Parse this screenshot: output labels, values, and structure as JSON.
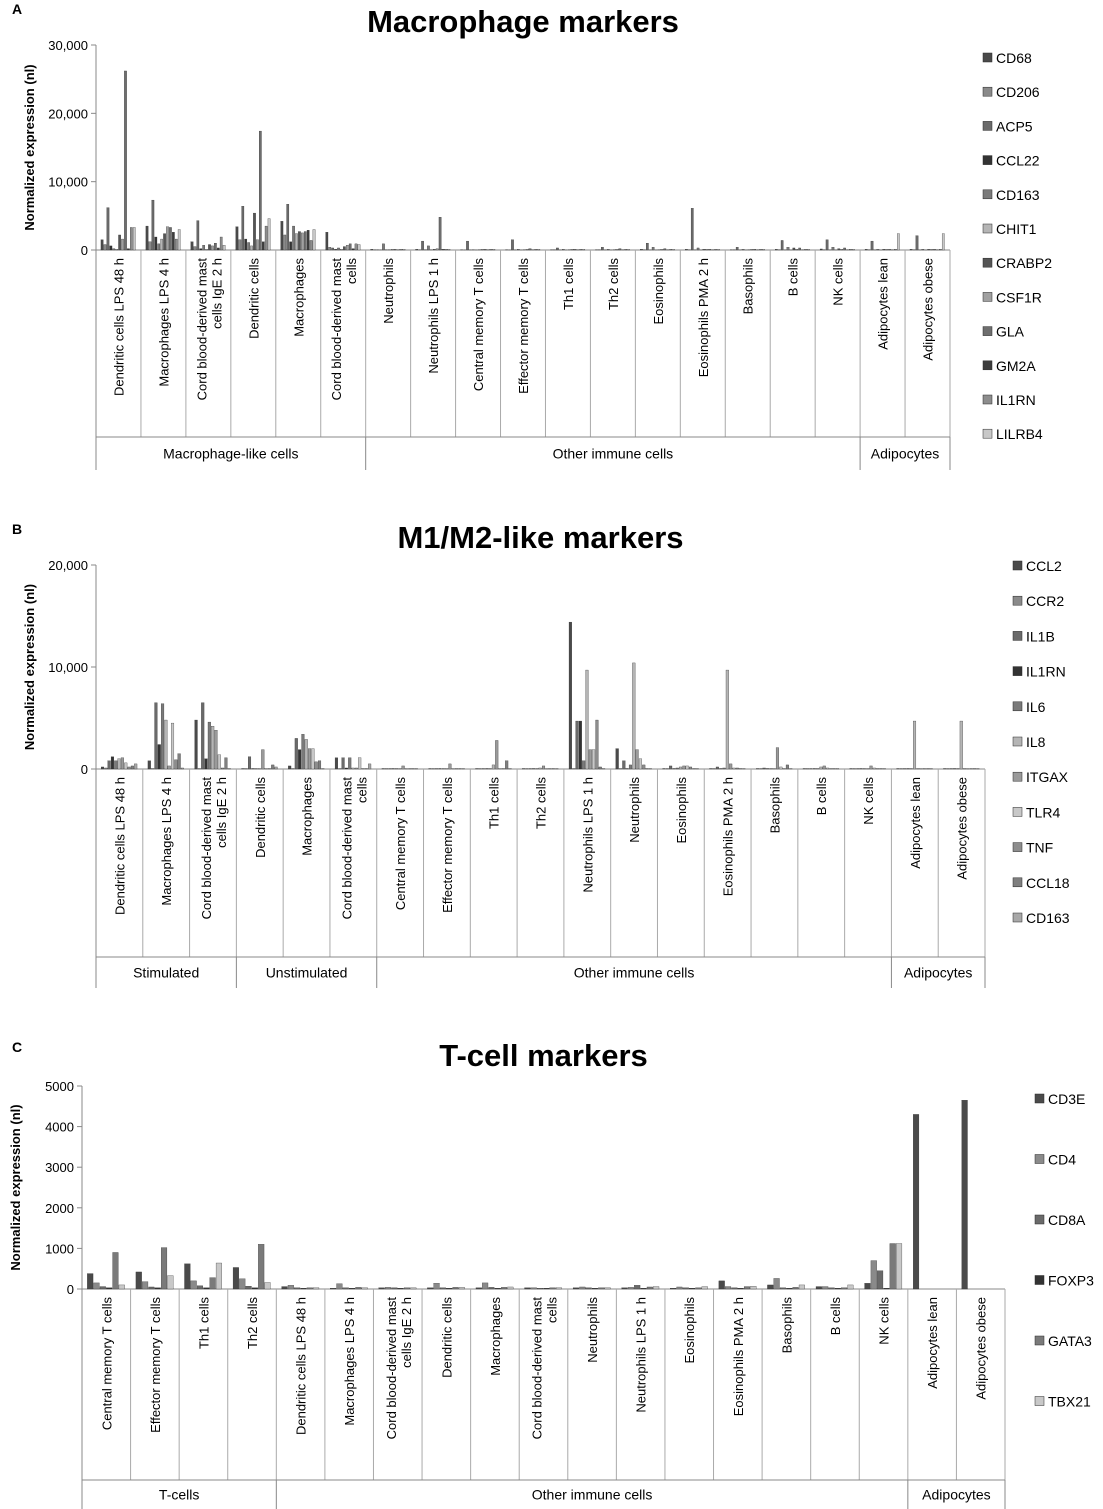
{
  "chart_data": [
    {
      "panel": "A",
      "type": "bar",
      "title": "Macrophage markers",
      "ylabel": "Normalized expression (nl)",
      "ylim": [
        0,
        30000
      ],
      "y_ticks": [
        "0",
        "10,000",
        "20,000",
        "30,000"
      ],
      "categories": [
        "Dendritic cells LPS 48 h",
        "Macrophages LPS 4 h",
        "Cord blood-derived mast cells IgE 2 h",
        "Dendritic cells",
        "Macrophages",
        "Cord blood-derived mast cells",
        "Neutrophils",
        "Neutrophils LPS 1 h",
        "Central memory T cells",
        "Effector memory T cells",
        "Th1 cells",
        "Th2 cells",
        "Eosinophils",
        "Eosinophils PMA 2 h",
        "Basophils",
        "B cells",
        "NK cells",
        "Adipocytes lean",
        "Adipocytes obese"
      ],
      "groups": [
        {
          "label": "Macrophage-like cells",
          "count": 6
        },
        {
          "label": "Other immune cells",
          "count": 11
        },
        {
          "label": "Adipocytes",
          "count": 2
        }
      ],
      "series": [
        {
          "name": "CD68",
          "color": "#4a4a4a",
          "values": [
            1500,
            3500,
            1200,
            3400,
            4200,
            2600,
            100,
            100,
            50,
            50,
            50,
            50,
            100,
            100,
            50,
            100,
            150,
            100,
            100
          ]
        },
        {
          "name": "CD206",
          "color": "#8a8a8a",
          "values": [
            800,
            1200,
            500,
            1500,
            2200,
            400,
            50,
            50,
            20,
            20,
            50,
            50,
            50,
            50,
            50,
            50,
            50,
            50,
            50
          ]
        },
        {
          "name": "ACP5",
          "color": "#6a6a6a",
          "values": [
            6200,
            7300,
            4300,
            6400,
            6700,
            300,
            50,
            1300,
            1300,
            1500,
            300,
            400,
            1000,
            6100,
            400,
            1400,
            1500,
            1300,
            2100
          ]
        },
        {
          "name": "CCL22",
          "color": "#333333",
          "values": [
            600,
            1900,
            200,
            1600,
            1200,
            100,
            20,
            50,
            20,
            20,
            20,
            20,
            20,
            20,
            20,
            20,
            20,
            20,
            20
          ]
        },
        {
          "name": "CD163",
          "color": "#7a7a7a",
          "values": [
            200,
            900,
            700,
            1100,
            3500,
            300,
            900,
            600,
            50,
            100,
            100,
            100,
            400,
            300,
            100,
            400,
            400,
            100,
            100
          ]
        },
        {
          "name": "CHIT1",
          "color": "#b5b5b5",
          "values": [
            100,
            1600,
            100,
            600,
            2400,
            100,
            50,
            50,
            20,
            20,
            20,
            20,
            20,
            20,
            20,
            20,
            20,
            20,
            20
          ]
        },
        {
          "name": "CRABP2",
          "color": "#555555",
          "values": [
            2200,
            2400,
            800,
            5400,
            2700,
            500,
            50,
            100,
            50,
            50,
            50,
            50,
            50,
            100,
            50,
            300,
            200,
            100,
            100
          ]
        },
        {
          "name": "CSF1R",
          "color": "#a0a0a0",
          "values": [
            1600,
            3400,
            600,
            1500,
            2500,
            700,
            100,
            200,
            100,
            100,
            100,
            100,
            100,
            100,
            100,
            100,
            100,
            100,
            100
          ]
        },
        {
          "name": "GLA",
          "color": "#6e6e6e",
          "values": [
            26200,
            3300,
            1000,
            17400,
            2700,
            900,
            100,
            4800,
            100,
            200,
            100,
            200,
            200,
            100,
            100,
            300,
            300,
            100,
            100
          ]
        },
        {
          "name": "GM2A",
          "color": "#3c3c3c",
          "values": [
            200,
            2600,
            300,
            1200,
            2900,
            200,
            50,
            100,
            50,
            50,
            50,
            50,
            50,
            50,
            50,
            50,
            50,
            50,
            50
          ]
        },
        {
          "name": "IL1RN",
          "color": "#8d8d8d",
          "values": [
            3300,
            1600,
            1900,
            3500,
            1400,
            900,
            100,
            100,
            100,
            100,
            100,
            100,
            100,
            100,
            100,
            100,
            100,
            100,
            100
          ]
        },
        {
          "name": "LILRB4",
          "color": "#c8c8c8",
          "values": [
            3300,
            3000,
            700,
            4600,
            3000,
            800,
            100,
            100,
            100,
            100,
            100,
            100,
            100,
            100,
            100,
            100,
            100,
            2400,
            2400
          ]
        }
      ]
    },
    {
      "panel": "B",
      "type": "bar",
      "title": "M1/M2-like markers",
      "ylabel": "Normalized expression (nl)",
      "ylim": [
        0,
        20000
      ],
      "y_ticks": [
        "0",
        "10,000",
        "20,000"
      ],
      "categories": [
        "Dendritic cells LPS 48 h",
        "Macrophages LPS 4 h",
        "Cord blood-derived mast cells IgE 2 h",
        "Dendritic cells",
        "Macrophages",
        "Cord blood-derived mast cells",
        "Central memory T cells",
        "Effector memory T cells",
        "Th1 cells",
        "Th2 cells",
        "Neutrophils LPS 1 h",
        "Neutrophils",
        "Eosinophils",
        "Eosinophils PMA 2 h",
        "Basophils",
        "B cells",
        "NK cells",
        "Adipocytes lean",
        "Adipocytes obese"
      ],
      "groups": [
        {
          "label": "Stimulated",
          "count": 3
        },
        {
          "label": "Unstimulated",
          "count": 3
        },
        {
          "label": "Other immune cells",
          "count": 11
        },
        {
          "label": "Adipocytes",
          "count": 2
        }
      ],
      "series": [
        {
          "name": "CCL2",
          "color": "#4a4a4a",
          "values": [
            200,
            800,
            4800,
            50,
            300,
            1100,
            50,
            50,
            50,
            50,
            14400,
            2000,
            50,
            50,
            50,
            50,
            50,
            50,
            50
          ]
        },
        {
          "name": "CCR2",
          "color": "#8a8a8a",
          "values": [
            100,
            50,
            50,
            50,
            50,
            50,
            50,
            50,
            50,
            50,
            50,
            50,
            50,
            50,
            50,
            50,
            50,
            50,
            50
          ]
        },
        {
          "name": "IL1B",
          "color": "#6a6a6a",
          "values": [
            800,
            6500,
            6500,
            1200,
            3000,
            1100,
            50,
            50,
            50,
            50,
            4700,
            800,
            300,
            200,
            100,
            50,
            50,
            50,
            50
          ]
        },
        {
          "name": "IL1RN",
          "color": "#333333",
          "values": [
            1200,
            2400,
            1000,
            50,
            1900,
            100,
            50,
            50,
            50,
            50,
            4700,
            50,
            50,
            50,
            50,
            50,
            50,
            50,
            50
          ]
        },
        {
          "name": "IL6",
          "color": "#7a7a7a",
          "values": [
            800,
            6400,
            4600,
            50,
            3400,
            1100,
            50,
            50,
            50,
            50,
            800,
            400,
            100,
            100,
            50,
            50,
            50,
            50,
            50
          ]
        },
        {
          "name": "IL8",
          "color": "#b5b5b5",
          "values": [
            1000,
            4800,
            4200,
            50,
            2900,
            100,
            50,
            50,
            400,
            100,
            9700,
            10400,
            200,
            9700,
            50,
            200,
            50,
            4700,
            4700
          ]
        },
        {
          "name": "ITGAX",
          "color": "#9a9a9a",
          "values": [
            1100,
            300,
            3800,
            1900,
            2000,
            100,
            300,
            500,
            2800,
            300,
            1900,
            1900,
            300,
            500,
            2100,
            300,
            300,
            50,
            50
          ]
        },
        {
          "name": "TLR4",
          "color": "#c8c8c8",
          "values": [
            600,
            4500,
            1400,
            50,
            2000,
            1100,
            50,
            50,
            50,
            50,
            1900,
            1000,
            300,
            100,
            200,
            100,
            100,
            50,
            50
          ]
        },
        {
          "name": "TNF",
          "color": "#8d8d8d",
          "values": [
            200,
            900,
            100,
            50,
            700,
            50,
            50,
            50,
            50,
            50,
            4800,
            400,
            200,
            100,
            50,
            50,
            50,
            50,
            50
          ]
        },
        {
          "name": "CCL18",
          "color": "#7f7f7f",
          "values": [
            300,
            1500,
            1100,
            400,
            800,
            50,
            50,
            50,
            800,
            50,
            200,
            50,
            50,
            50,
            400,
            50,
            50,
            50,
            50
          ]
        },
        {
          "name": "CD163",
          "color": "#a8a8a8",
          "values": [
            500,
            100,
            50,
            200,
            50,
            500,
            50,
            50,
            50,
            50,
            50,
            50,
            50,
            50,
            50,
            50,
            50,
            50,
            50
          ]
        }
      ]
    },
    {
      "panel": "C",
      "type": "bar",
      "title": "T-cell markers",
      "ylabel": "Normalized expression (nl)",
      "ylim": [
        0,
        5000
      ],
      "y_ticks": [
        "0",
        "1000",
        "2000",
        "3000",
        "4000",
        "5000"
      ],
      "categories": [
        "Central memory T cells",
        "Effector memory T cells",
        "Th1 cells",
        "Th2 cells",
        "Dendritic cells LPS 48 h",
        "Macrophages LPS 4 h",
        "Cord blood-derived mast cells IgE 2 h",
        "Dendritic cells",
        "Macrophages",
        "Cord blood-derived mast cells",
        "Neutrophils",
        "Neutrophils LPS 1 h",
        "Eosinophils",
        "Eosinophils PMA 2 h",
        "Basophils",
        "B cells",
        "NK cells",
        "Adipocytes lean",
        "Adipocytes obese"
      ],
      "groups": [
        {
          "label": "T-cells",
          "count": 4
        },
        {
          "label": "Other immune cells",
          "count": 13
        },
        {
          "label": "Adipocytes",
          "count": 2
        }
      ],
      "series": [
        {
          "name": "CD3E",
          "color": "#4a4a4a",
          "values": [
            380,
            420,
            620,
            530,
            60,
            20,
            30,
            30,
            30,
            30,
            30,
            30,
            20,
            200,
            100,
            60,
            140,
            4300,
            4650
          ]
        },
        {
          "name": "CD4",
          "color": "#8a8a8a",
          "values": [
            150,
            180,
            200,
            250,
            90,
            130,
            40,
            140,
            150,
            30,
            50,
            40,
            50,
            60,
            260,
            60,
            700,
            0,
            0
          ]
        },
        {
          "name": "CD8A",
          "color": "#6a6a6a",
          "values": [
            60,
            50,
            80,
            70,
            30,
            30,
            30,
            30,
            40,
            20,
            30,
            90,
            30,
            30,
            30,
            30,
            450,
            0,
            0
          ]
        },
        {
          "name": "FOXP3",
          "color": "#333333",
          "values": [
            30,
            30,
            30,
            30,
            20,
            20,
            20,
            20,
            20,
            20,
            20,
            20,
            20,
            20,
            20,
            20,
            20,
            0,
            0
          ]
        },
        {
          "name": "GATA3",
          "color": "#7a7a7a",
          "values": [
            900,
            1020,
            280,
            1100,
            30,
            40,
            30,
            40,
            40,
            30,
            30,
            50,
            30,
            60,
            40,
            30,
            1120,
            0,
            0
          ]
        },
        {
          "name": "TBX21",
          "color": "#c8c8c8",
          "values": [
            100,
            330,
            640,
            160,
            30,
            30,
            30,
            40,
            50,
            30,
            30,
            60,
            60,
            70,
            100,
            100,
            1120,
            0,
            0
          ]
        }
      ]
    }
  ]
}
